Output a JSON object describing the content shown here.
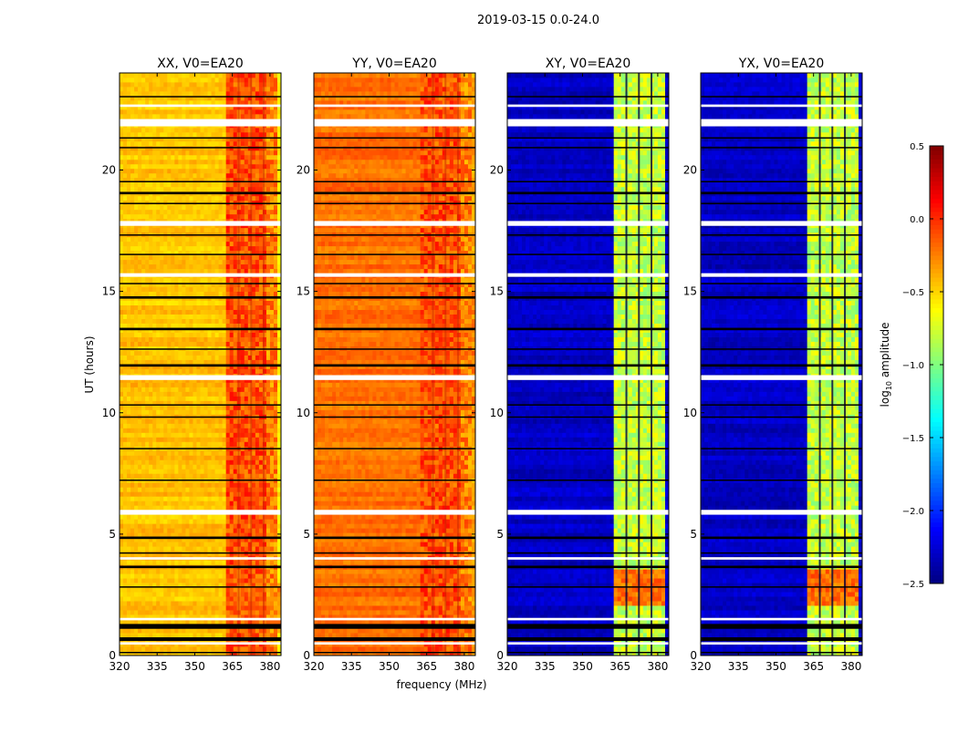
{
  "chart_data": {
    "type": "heatmap",
    "title": "2019-03-15 0.0-24.0",
    "xlabel": "frequency (MHz)",
    "ylabel": "UT (hours)",
    "xlim": [
      320,
      384.4
    ],
    "ylim": [
      0,
      24
    ],
    "xticks": [
      "320",
      "335",
      "350",
      "365",
      "380"
    ],
    "xtick_values": [
      320,
      335,
      350,
      365,
      380
    ],
    "yticks": [
      "0",
      "5",
      "10",
      "15",
      "20"
    ],
    "ytick_values": [
      0,
      5,
      10,
      15,
      20
    ],
    "colorbar": {
      "label": "log10 amplitude",
      "label_main": "log",
      "label_sub": "10",
      "label_rest": " amplitude",
      "colormap": "jet",
      "range": [
        -2.5,
        0.5
      ],
      "ticks": [
        "0.5",
        "0.0",
        "−0.5",
        "−1.0",
        "−1.5",
        "−2.0",
        "−2.5"
      ],
      "tick_values": [
        0.5,
        0.0,
        -0.5,
        -1.0,
        -1.5,
        -2.0,
        -2.5
      ]
    },
    "rfi_band_mhz": [
      363,
      383
    ],
    "rfi_stripes_mhz": [
      367.5,
      372.5,
      377.5
    ],
    "flagged_ut_white": [
      [
        21.8,
        22.1
      ],
      [
        22.6,
        22.7
      ],
      [
        17.7,
        17.9
      ],
      [
        15.6,
        15.75
      ],
      [
        11.35,
        11.55
      ],
      [
        5.8,
        6.0
      ],
      [
        3.95,
        4.05
      ],
      [
        0.45,
        0.55
      ],
      [
        1.45,
        1.55
      ]
    ],
    "flagged_ut_black": [
      [
        0.1,
        0.15
      ],
      [
        0.6,
        0.75
      ],
      [
        1.1,
        1.3
      ],
      [
        2.8,
        2.85
      ],
      [
        3.6,
        3.7
      ],
      [
        4.2,
        4.25
      ],
      [
        4.8,
        4.9
      ],
      [
        7.2,
        7.25
      ],
      [
        8.5,
        8.55
      ],
      [
        9.8,
        9.85
      ],
      [
        10.3,
        10.35
      ],
      [
        11.9,
        12.0
      ],
      [
        12.6,
        12.65
      ],
      [
        13.4,
        13.5
      ],
      [
        14.7,
        14.8
      ],
      [
        15.3,
        15.35
      ],
      [
        16.5,
        16.55
      ],
      [
        17.3,
        17.35
      ],
      [
        18.6,
        18.65
      ],
      [
        19.0,
        19.1
      ],
      [
        19.5,
        19.55
      ],
      [
        20.9,
        20.95
      ],
      [
        21.3,
        21.35
      ],
      [
        23.0,
        23.05
      ]
    ],
    "panels": [
      {
        "title": "XX, V0=EA20",
        "base_level": -0.45,
        "band_level": -0.1,
        "high_ut": [
          1.0,
          3.0
        ],
        "high_level": -0.15
      },
      {
        "title": "YY, V0=EA20",
        "base_level": -0.2,
        "band_level": -0.1,
        "high_ut": [
          10.0,
          15.0
        ],
        "high_level": -0.1
      },
      {
        "title": "XY, V0=EA20",
        "base_level": -2.3,
        "band_level": -0.8,
        "high_ut": [
          2.0,
          3.6
        ],
        "high_level": -0.2
      },
      {
        "title": "YX, V0=EA20",
        "base_level": -2.3,
        "band_level": -0.8,
        "high_ut": [
          2.0,
          3.6
        ],
        "high_level": -0.2
      }
    ]
  }
}
